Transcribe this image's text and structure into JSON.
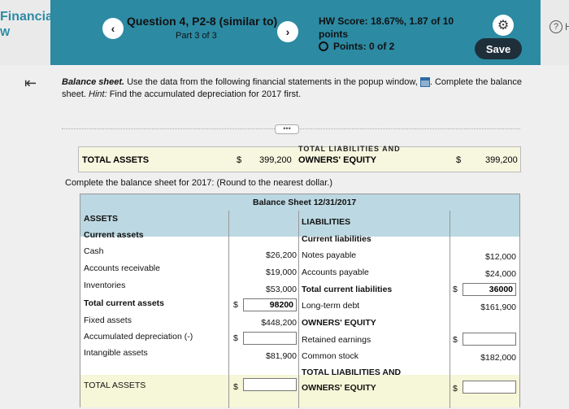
{
  "app": {
    "title": "Financial",
    "subtitle": "W"
  },
  "question": {
    "title": "Question 4, P2-8 (similar to)",
    "part": "Part 3 of 3"
  },
  "nav": {
    "prev": "‹",
    "next": "›"
  },
  "score": {
    "hw_score": "HW Score: 18.67%, 1.87 of 10 points",
    "points": "Points: 0 of 2"
  },
  "actions": {
    "save": "Save",
    "help": "He"
  },
  "instructions": {
    "lead": "Balance sheet.",
    "text1": " Use the data from the following financial statements in the popup window, ",
    "text2": ". Complete the balance sheet. ",
    "hint_label": "Hint:",
    "hint": " Find the accumulated depreciation for 2017 first."
  },
  "popup_fragment": {
    "total_assets_label": "TOTAL ASSETS",
    "dollar1": "$",
    "total_assets_value": "399,200",
    "cut_text": "TOTAL LIABILITIES AND",
    "owners_equity": "OWNERS' EQUITY",
    "dollar2": "$",
    "total_liab_value": "399,200"
  },
  "complete_line": "Complete the balance sheet for 2017: (Round to the nearest dollar.)",
  "sheet": {
    "title": "Balance Sheet 12/31/2017",
    "assets_header": "ASSETS",
    "liabilities_header": "LIABILITIES",
    "current_assets": "Current assets",
    "current_liabilities": "Current liabilities",
    "left_rows": [
      {
        "label": "Cash",
        "value": "$26,200"
      },
      {
        "label": "Accounts receivable",
        "value": "$19,000"
      },
      {
        "label": "Inventories",
        "value": "$53,000"
      }
    ],
    "total_current_assets": {
      "label": "Total current assets",
      "dollar": "$",
      "value": "98200"
    },
    "fixed_assets": {
      "label": "Fixed assets",
      "value": "$448,200"
    },
    "accum_dep": {
      "label": "Accumulated depreciation (-)",
      "dollar": "$",
      "value": ""
    },
    "intangible": {
      "label": "Intangible assets",
      "value": "$81,900"
    },
    "total_assets": {
      "label": "TOTAL ASSETS",
      "dollar": "$",
      "value": ""
    },
    "right_rows": [
      {
        "label": "Notes payable",
        "value": "$12,000"
      },
      {
        "label": "Accounts payable",
        "value": "$24,000"
      }
    ],
    "total_current_liab": {
      "label": "Total current liabilities",
      "dollar": "$",
      "value": "36000"
    },
    "long_term_debt": {
      "label": "Long-term debt",
      "value": "$161,900"
    },
    "owners_equity": "OWNERS' EQUITY",
    "retained": {
      "label": "Retained earnings",
      "dollar": "$",
      "value": ""
    },
    "common_stock": {
      "label": "Common stock",
      "value": "$182,000"
    },
    "total_liab_line1": "TOTAL LIABILITIES AND",
    "total_liab_line2": "OWNERS' EQUITY",
    "total_liab_dollar": "$",
    "total_liab_value": ""
  },
  "colors": {
    "header": "#2c8aa3",
    "band": "#bcd8e2",
    "total_band": "#f6f6d8",
    "save": "#1f2f3a"
  },
  "icons": {
    "gear": "gear-icon",
    "collapse": "collapse-left-icon",
    "help": "help-icon",
    "table": "table-icon",
    "radio": "radio-icon"
  }
}
